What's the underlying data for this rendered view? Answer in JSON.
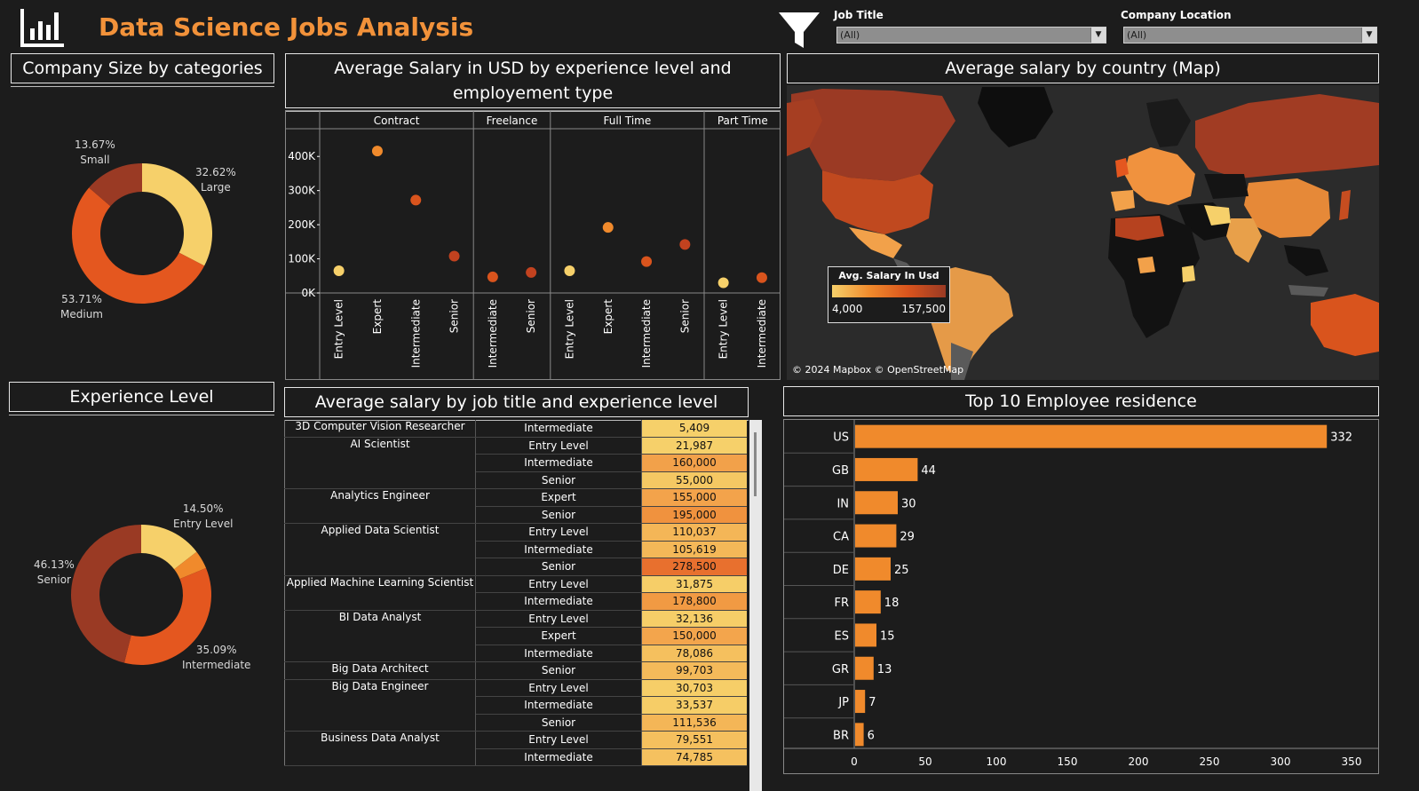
{
  "header": {
    "title": "Data Science Jobs Analysis",
    "job_title_label": "Job Title",
    "job_title_value": "(All)",
    "company_location_label": "Company Location",
    "company_location_value": "(All)"
  },
  "company_size": {
    "title": "Company Size by categories",
    "segments": [
      {
        "pct": "32.62%",
        "name": "Large",
        "value": 32.62,
        "color": "#f6d06a"
      },
      {
        "pct": "53.71%",
        "name": "Medium",
        "value": 53.71,
        "color": "#e4571f"
      },
      {
        "pct": "13.67%",
        "name": "Small",
        "value": 13.67,
        "color": "#9a3a24"
      }
    ]
  },
  "experience_level": {
    "title": "Experience Level",
    "segments": [
      {
        "pct": "14.50%",
        "name": "Entry Level",
        "value": 14.5,
        "color": "#f6d06a"
      },
      {
        "pct": "",
        "name": "",
        "value": 4.28,
        "color": "#f08a2c"
      },
      {
        "pct": "35.09%",
        "name": "Intermediate",
        "value": 35.09,
        "color": "#e4571f"
      },
      {
        "pct": "46.13%",
        "name": "Senior",
        "value": 46.13,
        "color": "#9a3a24"
      }
    ]
  },
  "salary_scatter": {
    "title": "Average Salary in USD by experience level and employement type",
    "y_ticks": [
      "400K",
      "300K",
      "200K",
      "100K",
      "0K"
    ],
    "chart_data": {
      "type": "scatter",
      "ylim": [
        0,
        450000
      ],
      "groups": [
        {
          "name": "Contract",
          "points": [
            {
              "level": "Entry Level",
              "value": 65000
            },
            {
              "level": "Expert",
              "value": 416000
            },
            {
              "level": "Intermediate",
              "value": 272000
            },
            {
              "level": "Senior",
              "value": 108000
            }
          ]
        },
        {
          "name": "Freelance",
          "points": [
            {
              "level": "Intermediate",
              "value": 47000
            },
            {
              "level": "Senior",
              "value": 60000
            }
          ]
        },
        {
          "name": "Full Time",
          "points": [
            {
              "level": "Entry Level",
              "value": 65000
            },
            {
              "level": "Expert",
              "value": 192000
            },
            {
              "level": "Intermediate",
              "value": 92000
            },
            {
              "level": "Senior",
              "value": 142000
            }
          ]
        },
        {
          "name": "Part Time",
          "points": [
            {
              "level": "Entry Level",
              "value": 30000
            },
            {
              "level": "Intermediate",
              "value": 45000
            }
          ]
        }
      ]
    }
  },
  "map": {
    "title": "Average salary by country (Map)",
    "legend_title": "Avg. Salary In Usd",
    "legend_min": "4,000",
    "legend_max": "157,500",
    "attribution": "© 2024 Mapbox © OpenStreetMap"
  },
  "job_table": {
    "title": "Average salary by job title and experience level",
    "rows": [
      {
        "job": "3D Computer Vision Researcher",
        "level": "Intermediate",
        "value": "5,409",
        "color": "#f6d06a"
      },
      {
        "job": "AI Scientist",
        "level": "Entry Level",
        "value": "21,987",
        "color": "#f6d06a"
      },
      {
        "job": "",
        "level": "Intermediate",
        "value": "160,000",
        "color": "#f2a14a"
      },
      {
        "job": "",
        "level": "Senior",
        "value": "55,000",
        "color": "#f5c863"
      },
      {
        "job": "Analytics Engineer",
        "level": "Expert",
        "value": "155,000",
        "color": "#f3a34b"
      },
      {
        "job": "",
        "level": "Senior",
        "value": "195,000",
        "color": "#f0923e"
      },
      {
        "job": "Applied Data Scientist",
        "level": "Entry Level",
        "value": "110,037",
        "color": "#f4b657"
      },
      {
        "job": "",
        "level": "Intermediate",
        "value": "105,619",
        "color": "#f4b858"
      },
      {
        "job": "",
        "level": "Senior",
        "value": "278,500",
        "color": "#e8702e"
      },
      {
        "job": "Applied Machine Learning Scientist",
        "level": "Entry Level",
        "value": "31,875",
        "color": "#f6ce68"
      },
      {
        "job": "",
        "level": "Intermediate",
        "value": "178,800",
        "color": "#f19a43"
      },
      {
        "job": "BI Data Analyst",
        "level": "Entry Level",
        "value": "32,136",
        "color": "#f6ce68"
      },
      {
        "job": "",
        "level": "Expert",
        "value": "150,000",
        "color": "#f3a54c"
      },
      {
        "job": "",
        "level": "Intermediate",
        "value": "78,086",
        "color": "#f5c05e"
      },
      {
        "job": "Big Data Architect",
        "level": "Senior",
        "value": "99,703",
        "color": "#f4ba5a"
      },
      {
        "job": "Big Data Engineer",
        "level": "Entry Level",
        "value": "30,703",
        "color": "#f6ce68"
      },
      {
        "job": "",
        "level": "Intermediate",
        "value": "33,537",
        "color": "#f6cd67"
      },
      {
        "job": "",
        "level": "Senior",
        "value": "111,536",
        "color": "#f4b657"
      },
      {
        "job": "Business Data Analyst",
        "level": "Entry Level",
        "value": "79,551",
        "color": "#f5c05e"
      },
      {
        "job": "",
        "level": "Intermediate",
        "value": "74,785",
        "color": "#f5c15f"
      }
    ]
  },
  "residence": {
    "title": "Top 10 Employee residence",
    "x_ticks": [
      "0",
      "50",
      "100",
      "150",
      "200",
      "250",
      "300",
      "350"
    ],
    "chart_data": {
      "type": "bar",
      "orientation": "horizontal",
      "categories": [
        "US",
        "GB",
        "IN",
        "CA",
        "DE",
        "FR",
        "ES",
        "GR",
        "JP",
        "BR"
      ],
      "values": [
        332,
        44,
        30,
        29,
        25,
        18,
        15,
        13,
        7,
        6
      ],
      "xlim": [
        0,
        360
      ],
      "color": "#f08a2c"
    }
  }
}
